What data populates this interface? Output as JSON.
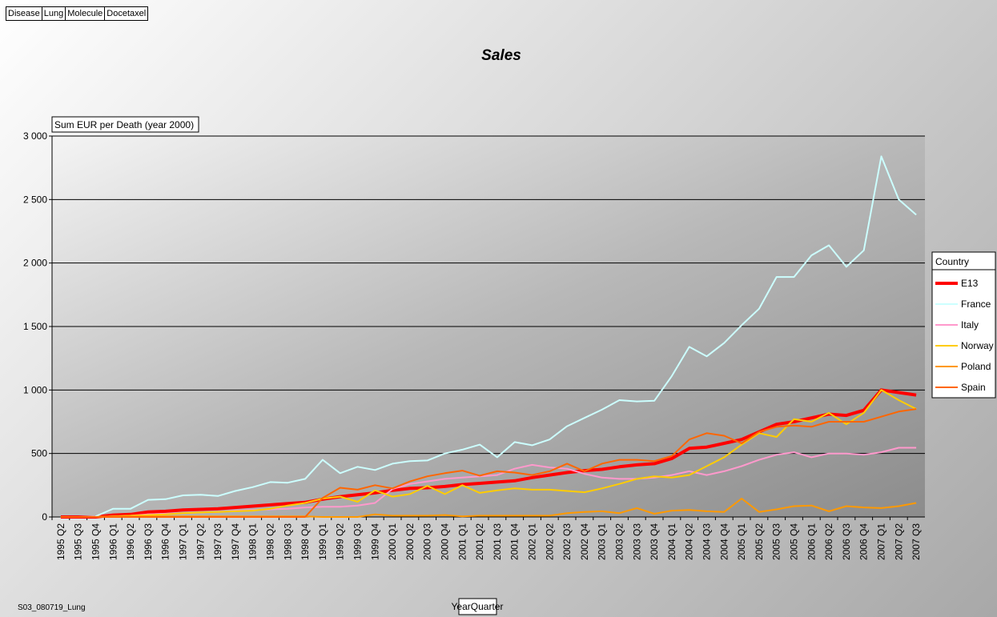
{
  "chart_data": {
    "type": "line",
    "title": "Sales",
    "filters": [
      "Disease",
      "Lung",
      "Molecule",
      "Docetaxel"
    ],
    "y_label": "Sum EUR per Death (year 2000)",
    "x_label": "YearQuarter",
    "legend_title": "Country",
    "footer": "S03_080719_Lung",
    "legend_position": "right",
    "grid": true,
    "ylim": [
      0,
      3000
    ],
    "yticks": [
      0,
      500,
      {
        "value": 1000,
        "label": "1 000"
      },
      {
        "value": 1500,
        "label": "1 500"
      },
      {
        "value": 2000,
        "label": "2 000"
      },
      {
        "value": 2500,
        "label": "2 500"
      },
      {
        "value": 3000,
        "label": "3 000"
      }
    ],
    "categories": [
      "1995 Q2",
      "1995 Q3",
      "1995 Q4",
      "1996 Q1",
      "1996 Q2",
      "1996 Q3",
      "1996 Q4",
      "1997 Q1",
      "1997 Q2",
      "1997 Q3",
      "1997 Q4",
      "1998 Q1",
      "1998 Q2",
      "1998 Q3",
      "1998 Q4",
      "1999 Q1",
      "1999 Q2",
      "1999 Q3",
      "1999 Q4",
      "2000 Q1",
      "2000 Q2",
      "2000 Q3",
      "2000 Q4",
      "2001 Q1",
      "2001 Q2",
      "2001 Q3",
      "2001 Q4",
      "2002 Q1",
      "2002 Q2",
      "2002 Q3",
      "2002 Q4",
      "2003 Q1",
      "2003 Q2",
      "2003 Q3",
      "2003 Q4",
      "2004 Q1",
      "2004 Q2",
      "2004 Q3",
      "2004 Q4",
      "2005 Q1",
      "2005 Q2",
      "2005 Q3",
      "2005 Q4",
      "2006 Q1",
      "2006 Q2",
      "2006 Q3",
      "2006 Q4",
      "2007 Q1",
      "2007 Q2",
      "2007 Q3"
    ],
    "series": [
      {
        "name": "E13",
        "color": "#ff0000",
        "width": 4,
        "values": [
          0,
          0,
          0,
          15,
          20,
          40,
          45,
          55,
          60,
          65,
          75,
          85,
          95,
          105,
          115,
          140,
          160,
          175,
          190,
          210,
          225,
          230,
          240,
          255,
          265,
          275,
          285,
          310,
          330,
          350,
          365,
          375,
          395,
          410,
          420,
          460,
          540,
          550,
          580,
          610,
          670,
          730,
          750,
          780,
          810,
          800,
          840,
          1000,
          980,
          960
        ]
      },
      {
        "name": "France",
        "color": "#ccffff",
        "width": 2,
        "values": [
          0,
          0,
          5,
          65,
          65,
          135,
          140,
          170,
          175,
          165,
          205,
          235,
          275,
          270,
          300,
          450,
          345,
          395,
          370,
          420,
          440,
          445,
          500,
          530,
          570,
          470,
          590,
          565,
          610,
          715,
          780,
          845,
          920,
          910,
          915,
          1110,
          1340,
          1265,
          1370,
          1510,
          1640,
          1890,
          1890,
          2060,
          2140,
          1970,
          2100,
          2840,
          2500,
          2380
        ]
      },
      {
        "name": "Italy",
        "color": "#ff99cc",
        "width": 2,
        "values": [
          0,
          0,
          0,
          5,
          10,
          20,
          25,
          30,
          35,
          40,
          50,
          55,
          60,
          65,
          75,
          80,
          80,
          90,
          110,
          220,
          260,
          280,
          300,
          310,
          320,
          330,
          380,
          410,
          390,
          380,
          340,
          310,
          300,
          300,
          310,
          330,
          360,
          330,
          360,
          400,
          450,
          490,
          510,
          470,
          500,
          500,
          490,
          510,
          545,
          545
        ]
      },
      {
        "name": "Norway",
        "color": "#ffcc00",
        "width": 2,
        "values": [
          0,
          0,
          0,
          5,
          10,
          15,
          20,
          30,
          35,
          40,
          45,
          50,
          65,
          90,
          110,
          145,
          160,
          120,
          210,
          160,
          180,
          245,
          180,
          250,
          190,
          210,
          225,
          215,
          215,
          205,
          195,
          225,
          260,
          300,
          320,
          310,
          330,
          400,
          470,
          570,
          660,
          630,
          770,
          750,
          820,
          730,
          820,
          1000,
          920,
          850
        ]
      },
      {
        "name": "Poland",
        "color": "#ff9900",
        "width": 2,
        "values": [
          0,
          0,
          0,
          5,
          5,
          5,
          5,
          5,
          5,
          5,
          5,
          5,
          5,
          5,
          5,
          0,
          0,
          0,
          20,
          10,
          10,
          10,
          15,
          5,
          10,
          10,
          10,
          10,
          10,
          30,
          40,
          45,
          30,
          70,
          25,
          50,
          55,
          45,
          40,
          145,
          40,
          60,
          85,
          90,
          45,
          85,
          75,
          70,
          85,
          110
        ]
      },
      {
        "name": "Spain",
        "color": "#ff6600",
        "width": 2,
        "values": [
          0,
          0,
          0,
          0,
          0,
          0,
          0,
          0,
          0,
          0,
          0,
          0,
          0,
          0,
          0,
          150,
          230,
          215,
          250,
          225,
          280,
          320,
          345,
          365,
          325,
          360,
          350,
          330,
          360,
          420,
          360,
          420,
          450,
          450,
          440,
          480,
          610,
          660,
          640,
          580,
          670,
          710,
          720,
          710,
          750,
          750,
          750,
          790,
          830,
          850
        ]
      }
    ]
  }
}
